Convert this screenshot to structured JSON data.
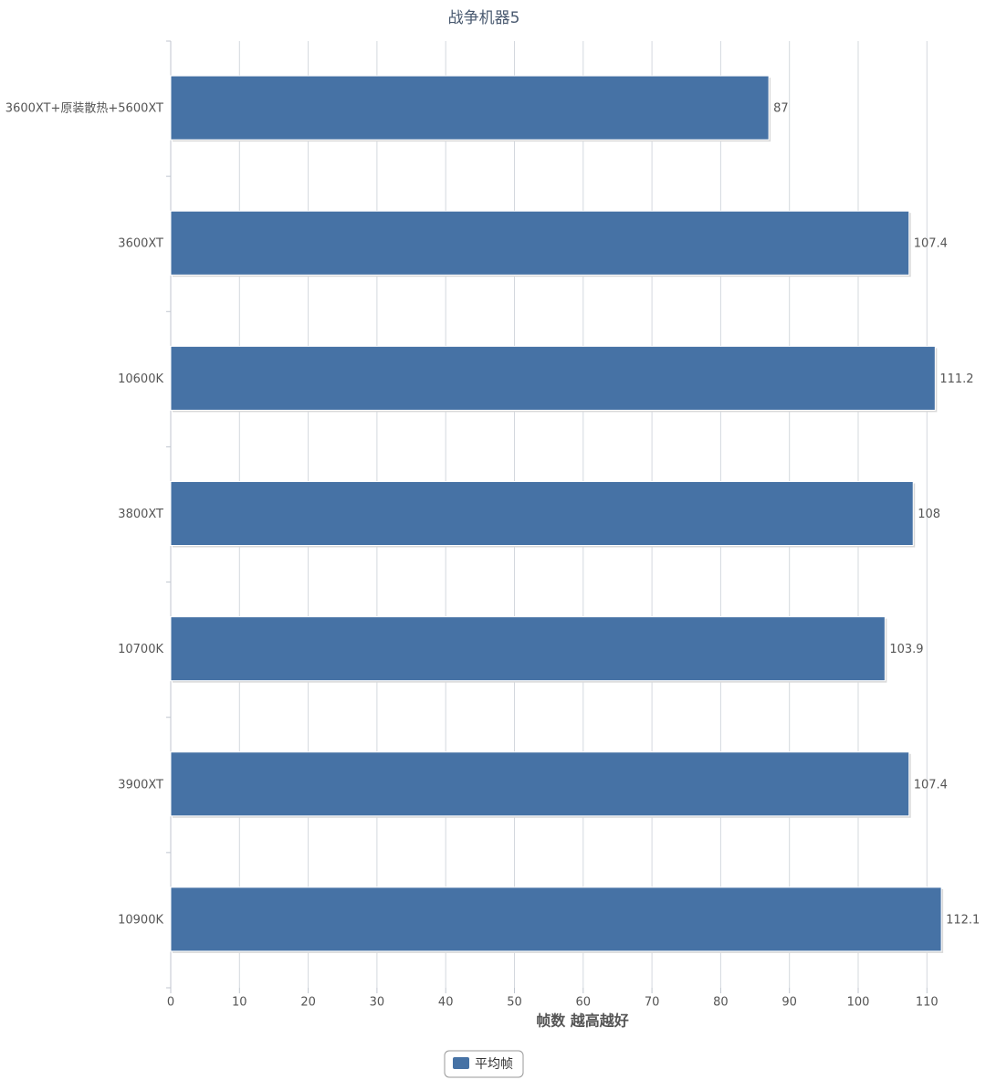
{
  "chart_data": {
    "type": "hbar",
    "title": "战争机器5",
    "x_label": "帧数 越高越好",
    "categories": [
      "3600XT+原装散热+5600XT",
      "3600XT",
      "10600K",
      "3800XT",
      "10700K",
      "3900XT",
      "10900K"
    ],
    "series": [
      {
        "name": "平均帧",
        "color": "#4672a5",
        "values": [
          87,
          107.4,
          111.2,
          108,
          103.9,
          107.4,
          112.1
        ]
      }
    ],
    "xlim": [
      0,
      117
    ],
    "xticks": [
      0,
      10,
      20,
      30,
      40,
      50,
      60,
      70,
      80,
      90,
      100,
      110
    ],
    "grid": true,
    "legend": "bottom"
  }
}
